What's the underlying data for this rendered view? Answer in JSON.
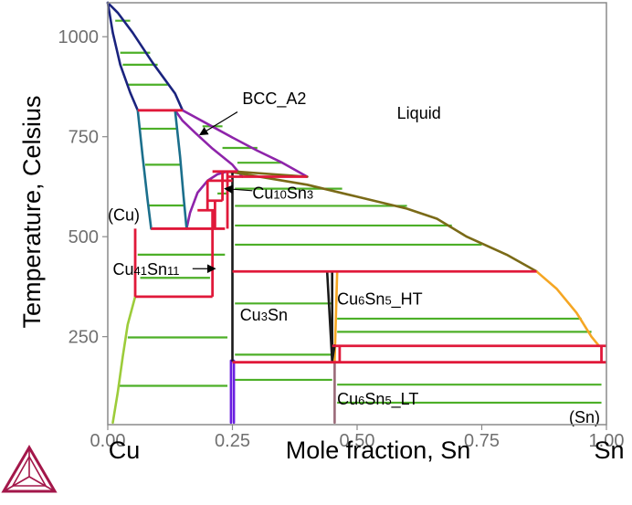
{
  "chart_data": {
    "type": "phase-diagram",
    "xlabel": "Mole fraction, Sn",
    "ylabel": "Temperature, Celsius",
    "x_end_labels": {
      "left": "Cu",
      "right": "Sn"
    },
    "xlim": [
      0,
      1
    ],
    "ylim": [
      30,
      1085
    ],
    "x_ticks": [
      {
        "v": 0,
        "label": "0.00"
      },
      {
        "v": 0.25,
        "label": "0.25"
      },
      {
        "v": 0.5,
        "label": "0.50"
      },
      {
        "v": 0.75,
        "label": "0.75"
      },
      {
        "v": 1,
        "label": "1.00"
      }
    ],
    "y_ticks": [
      {
        "v": 250,
        "label": "250"
      },
      {
        "v": 500,
        "label": "500"
      },
      {
        "v": 750,
        "label": "750"
      },
      {
        "v": 1000,
        "label": "1000"
      }
    ],
    "grid": false,
    "colors": {
      "liquidus_cu": "#1a237e",
      "bcc": "#8e24aa",
      "fcc_solvus": "#1b6f8c",
      "liquidus_main": "#7a6a17",
      "liquidus_sn": "#f5a623",
      "invariant": "#e0193a",
      "tieline": "#4caf27",
      "cu_solvus": "#9ccc3a",
      "cu3sn": "#6a1fe0",
      "cu6sn5_boundary": "#9a6a78",
      "dark": "#1a1a1a"
    },
    "boundaries": [
      {
        "color": "liquidus_cu",
        "points": [
          [
            0,
            1085
          ],
          [
            0.02,
            1060
          ],
          [
            0.05,
            1010
          ],
          [
            0.09,
            935
          ],
          [
            0.135,
            858
          ],
          [
            0.15,
            816
          ]
        ]
      },
      {
        "color": "liquidus_cu",
        "points": [
          [
            0,
            1085
          ],
          [
            0.01,
            1010
          ],
          [
            0.025,
            930
          ],
          [
            0.045,
            860
          ],
          [
            0.06,
            816
          ]
        ]
      },
      {
        "color": "bcc",
        "points": [
          [
            0.15,
            816
          ],
          [
            0.2,
            782
          ],
          [
            0.25,
            748
          ],
          [
            0.3,
            715
          ],
          [
            0.35,
            685
          ],
          [
            0.4,
            650
          ]
        ]
      },
      {
        "color": "bcc",
        "points": [
          [
            0.135,
            816
          ],
          [
            0.15,
            790
          ],
          [
            0.175,
            760
          ],
          [
            0.21,
            720
          ],
          [
            0.25,
            680
          ],
          [
            0.27,
            650
          ]
        ]
      },
      {
        "color": "bcc",
        "points": [
          [
            0.158,
            520
          ],
          [
            0.165,
            560
          ],
          [
            0.18,
            610
          ],
          [
            0.2,
            640
          ],
          [
            0.22,
            656
          ],
          [
            0.24,
            663
          ]
        ]
      },
      {
        "color": "fcc_solvus",
        "points": [
          [
            0.06,
            816
          ],
          [
            0.07,
            700
          ],
          [
            0.08,
            590
          ],
          [
            0.087,
            520
          ]
        ]
      },
      {
        "color": "fcc_solvus",
        "points": [
          [
            0.135,
            816
          ],
          [
            0.145,
            700
          ],
          [
            0.152,
            600
          ],
          [
            0.158,
            520
          ]
        ]
      },
      {
        "color": "liquidus_main",
        "points": [
          [
            0.24,
            663
          ],
          [
            0.28,
            655
          ],
          [
            0.4,
            630
          ],
          [
            0.5,
            600
          ],
          [
            0.6,
            570
          ],
          [
            0.66,
            545
          ],
          [
            0.72,
            500
          ],
          [
            0.8,
            455
          ],
          [
            0.86,
            413
          ]
        ]
      },
      {
        "color": "liquidus_main",
        "points": [
          [
            0.255,
            663
          ],
          [
            0.4,
            650
          ]
        ]
      },
      {
        "color": "liquidus_sn",
        "points": [
          [
            0.86,
            413
          ],
          [
            0.9,
            370
          ],
          [
            0.94,
            310
          ],
          [
            0.97,
            250
          ],
          [
            0.985,
            227
          ]
        ]
      },
      {
        "color": "cu_solvus",
        "points": [
          [
            0.01,
            35
          ],
          [
            0.02,
            110
          ],
          [
            0.03,
            200
          ],
          [
            0.04,
            280
          ],
          [
            0.055,
            350
          ]
        ]
      },
      {
        "color": "cu3sn",
        "points": [
          [
            0.247,
            35
          ],
          [
            0.247,
            190
          ]
        ]
      },
      {
        "color": "cu3sn",
        "points": [
          [
            0.253,
            35
          ],
          [
            0.253,
            190
          ]
        ]
      },
      {
        "color": "dark",
        "points": [
          [
            0.25,
            190
          ],
          [
            0.25,
            663
          ]
        ]
      },
      {
        "color": "dark",
        "points": [
          [
            0.45,
            190
          ],
          [
            0.45,
            413
          ]
        ]
      },
      {
        "color": "cu6sn5_boundary",
        "points": [
          [
            0.455,
            35
          ],
          [
            0.455,
            190
          ]
        ]
      },
      {
        "color": "liquidus_sn",
        "points": [
          [
            0.455,
            190
          ],
          [
            0.46,
            413
          ]
        ]
      },
      {
        "color": "dark",
        "points": [
          [
            0.44,
            413
          ],
          [
            0.45,
            190
          ],
          [
            0.455,
            228
          ]
        ]
      }
    ],
    "invariants": [
      {
        "y": 816,
        "x": [
          0.06,
          0.15
        ]
      },
      {
        "y": 663,
        "x": [
          0.21,
          0.26
        ]
      },
      {
        "y": 650,
        "x": [
          0.24,
          0.4
        ]
      },
      {
        "y": 640,
        "x": [
          0.2,
          0.25
        ]
      },
      {
        "y": 590,
        "x": [
          0.2,
          0.23
        ]
      },
      {
        "y": 566,
        "x": [
          0.18,
          0.215
        ]
      },
      {
        "y": 520,
        "x": [
          0.087,
          0.235
        ]
      },
      {
        "y": 413,
        "x": [
          0.25,
          0.86
        ]
      },
      {
        "y": 350,
        "x": [
          0.055,
          0.21
        ]
      },
      {
        "y": 227,
        "x": [
          0.45,
          1.0
        ]
      },
      {
        "y": 186,
        "x": [
          0.25,
          1.0
        ]
      }
    ],
    "invariant_verticals": [
      {
        "x": 0.055,
        "y": [
          350,
          520
        ]
      },
      {
        "x": 0.21,
        "y": [
          350,
          566
        ]
      },
      {
        "x": 0.215,
        "y": [
          520,
          590
        ]
      },
      {
        "x": 0.23,
        "y": [
          590,
          663
        ]
      },
      {
        "x": 0.2,
        "y": [
          566,
          640
        ]
      },
      {
        "x": 0.24,
        "y": [
          520,
          663
        ]
      },
      {
        "x": 0.465,
        "y": [
          186,
          227
        ]
      },
      {
        "x": 0.99,
        "y": [
          186,
          227
        ]
      }
    ],
    "tielines": [
      {
        "y": 1040,
        "x": [
          0.015,
          0.045
        ]
      },
      {
        "y": 960,
        "x": [
          0.025,
          0.085
        ]
      },
      {
        "y": 930,
        "x": [
          0.03,
          0.1
        ]
      },
      {
        "y": 880,
        "x": [
          0.04,
          0.12
        ]
      },
      {
        "y": 770,
        "x": [
          0.065,
          0.14
        ]
      },
      {
        "y": 680,
        "x": [
          0.075,
          0.145
        ]
      },
      {
        "y": 578,
        "x": [
          0.082,
          0.155
        ]
      },
      {
        "y": 776,
        "x": [
          0.19,
          0.23
        ]
      },
      {
        "y": 722,
        "x": [
          0.23,
          0.3
        ]
      },
      {
        "y": 685,
        "x": [
          0.26,
          0.35
        ]
      },
      {
        "y": 608,
        "x": [
          0.22,
          0.24
        ]
      },
      {
        "y": 620,
        "x": [
          0.255,
          0.47
        ]
      },
      {
        "y": 577,
        "x": [
          0.255,
          0.6
        ]
      },
      {
        "y": 528,
        "x": [
          0.255,
          0.69
        ]
      },
      {
        "y": 480,
        "x": [
          0.255,
          0.75
        ]
      },
      {
        "y": 455,
        "x": [
          0.06,
          0.235
        ]
      },
      {
        "y": 397,
        "x": [
          0.065,
          0.205
        ]
      },
      {
        "y": 333,
        "x": [
          0.255,
          0.45
        ]
      },
      {
        "y": 295,
        "x": [
          0.46,
          0.95
        ]
      },
      {
        "y": 262,
        "x": [
          0.46,
          0.97
        ]
      },
      {
        "y": 248,
        "x": [
          0.04,
          0.24
        ]
      },
      {
        "y": 205,
        "x": [
          0.255,
          0.45
        ]
      },
      {
        "y": 142,
        "x": [
          0.255,
          0.45
        ]
      },
      {
        "y": 127,
        "x": [
          0.02,
          0.24
        ]
      },
      {
        "y": 130,
        "x": [
          0.46,
          0.99
        ]
      },
      {
        "y": 85,
        "x": [
          0.46,
          0.99
        ]
      }
    ],
    "annotations": [
      {
        "parts": [
          {
            "t": "Liquid"
          }
        ],
        "x": 0.58,
        "y": 795
      },
      {
        "parts": [
          {
            "t": "BCC_A2"
          }
        ],
        "x": 0.27,
        "y": 832,
        "arrow": {
          "from": [
            0.26,
            812
          ],
          "to": [
            0.185,
            755
          ]
        }
      },
      {
        "parts": [
          {
            "t": "Cu"
          },
          {
            "t": "10",
            "sub": true
          },
          {
            "t": "Sn"
          },
          {
            "t": "3",
            "sub": true
          }
        ],
        "x": 0.29,
        "y": 595,
        "arrow": {
          "from": [
            0.29,
            615
          ],
          "to": [
            0.235,
            620
          ]
        }
      },
      {
        "parts": [
          {
            "t": "(Cu)"
          }
        ],
        "x": 0.0,
        "y": 540
      },
      {
        "parts": [
          {
            "t": "Cu"
          },
          {
            "t": "41",
            "sub": true
          },
          {
            "t": "Sn"
          },
          {
            "t": "11",
            "sub": true
          }
        ],
        "x": 0.01,
        "y": 405,
        "arrow": {
          "from": [
            0.17,
            420
          ],
          "to": [
            0.215,
            420
          ]
        }
      },
      {
        "parts": [
          {
            "t": "Cu"
          },
          {
            "t": "3",
            "sub": true
          },
          {
            "t": "Sn"
          }
        ],
        "x": 0.265,
        "y": 290
      },
      {
        "parts": [
          {
            "t": "Cu"
          },
          {
            "t": "6",
            "sub": true
          },
          {
            "t": "Sn"
          },
          {
            "t": "5",
            "sub": true
          },
          {
            "t": "_HT"
          }
        ],
        "x": 0.46,
        "y": 330
      },
      {
        "parts": [
          {
            "t": "Cu"
          },
          {
            "t": "6",
            "sub": true
          },
          {
            "t": "Sn"
          },
          {
            "t": "5",
            "sub": true
          },
          {
            "t": "_LT"
          }
        ],
        "x": 0.46,
        "y": 80
      },
      {
        "parts": [
          {
            "t": "(Sn)"
          }
        ],
        "x": 0.925,
        "y": 35
      }
    ]
  }
}
